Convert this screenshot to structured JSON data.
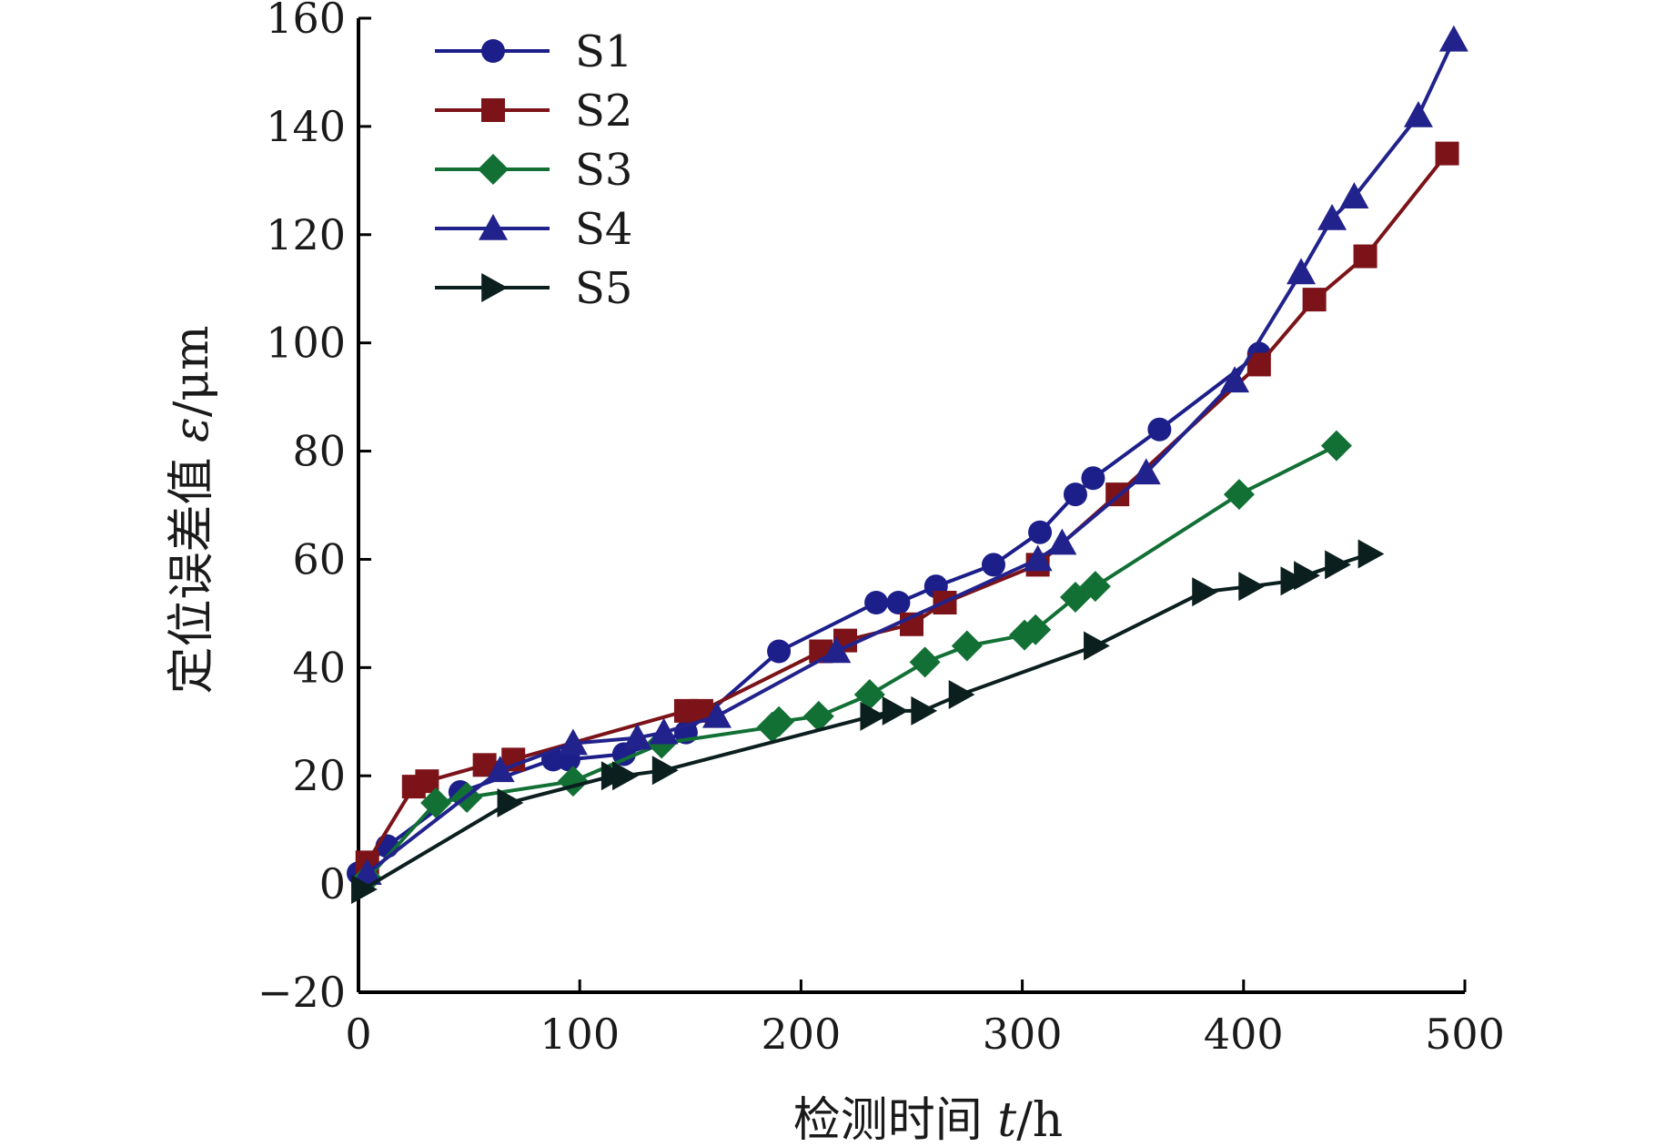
{
  "chart_data": {
    "type": "line",
    "xlabel": {
      "prefix": "检测时间 ",
      "var": "t",
      "suffix": "/h"
    },
    "ylabel": {
      "prefix": "定位误差值 ",
      "var": "ε",
      "suffix": "/μm"
    },
    "xlim": [
      0,
      500
    ],
    "ylim": [
      -20,
      160
    ],
    "xticks": [
      0,
      100,
      200,
      300,
      400,
      500
    ],
    "yticks": [
      -20,
      0,
      20,
      40,
      60,
      80,
      100,
      120,
      140,
      160
    ],
    "grid": false,
    "legend_position": "top-left",
    "series": [
      {
        "name": "S1",
        "color": "#1c1e8a",
        "marker": "circle",
        "points": [
          [
            0,
            2
          ],
          [
            13,
            7
          ],
          [
            46,
            17
          ],
          [
            88,
            23
          ],
          [
            95,
            23
          ],
          [
            120,
            24
          ],
          [
            148,
            28
          ],
          [
            190,
            43
          ],
          [
            234,
            52
          ],
          [
            244,
            52
          ],
          [
            261,
            55
          ],
          [
            287,
            59
          ],
          [
            308,
            65
          ],
          [
            324,
            72
          ],
          [
            332,
            75
          ],
          [
            362,
            84
          ],
          [
            407,
            98
          ]
        ]
      },
      {
        "name": "S2",
        "color": "#7b1318",
        "marker": "square",
        "points": [
          [
            4,
            4
          ],
          [
            25,
            18
          ],
          [
            31,
            19
          ],
          [
            57,
            22
          ],
          [
            70,
            23
          ],
          [
            148,
            32
          ],
          [
            155,
            32
          ],
          [
            209,
            43
          ],
          [
            220,
            45
          ],
          [
            250,
            48
          ],
          [
            265,
            52
          ],
          [
            307,
            59
          ],
          [
            343,
            72
          ],
          [
            407,
            96
          ],
          [
            432,
            108
          ],
          [
            455,
            116
          ],
          [
            492,
            135
          ]
        ]
      },
      {
        "name": "S3",
        "color": "#127035",
        "marker": "diamond",
        "points": [
          [
            4,
            1
          ],
          [
            35,
            15
          ],
          [
            49,
            16
          ],
          [
            97,
            19
          ],
          [
            137,
            26
          ],
          [
            187,
            29
          ],
          [
            190,
            30
          ],
          [
            208,
            31
          ],
          [
            231,
            35
          ],
          [
            256,
            41
          ],
          [
            275,
            44
          ],
          [
            301,
            46
          ],
          [
            306,
            47
          ],
          [
            324,
            53
          ],
          [
            333,
            55
          ],
          [
            398,
            72
          ],
          [
            442,
            81
          ]
        ]
      },
      {
        "name": "S4",
        "color": "#22228c",
        "marker": "triangle-up",
        "points": [
          [
            4,
            2
          ],
          [
            64,
            21
          ],
          [
            97,
            26
          ],
          [
            126,
            27
          ],
          [
            138,
            28
          ],
          [
            162,
            31
          ],
          [
            216,
            43
          ],
          [
            307,
            60
          ],
          [
            318,
            63
          ],
          [
            356,
            76
          ],
          [
            396,
            93
          ],
          [
            426,
            113
          ],
          [
            440,
            123
          ],
          [
            450,
            127
          ],
          [
            479,
            142
          ],
          [
            495,
            156
          ]
        ]
      },
      {
        "name": "S5",
        "color": "#0b1f1e",
        "marker": "triangle-right",
        "points": [
          [
            2,
            -1
          ],
          [
            68,
            15
          ],
          [
            115,
            20
          ],
          [
            120,
            20
          ],
          [
            138,
            21
          ],
          [
            232,
            31
          ],
          [
            242,
            32
          ],
          [
            255,
            32
          ],
          [
            272,
            35
          ],
          [
            333,
            44
          ],
          [
            382,
            54
          ],
          [
            403,
            55
          ],
          [
            422,
            56
          ],
          [
            428,
            57
          ],
          [
            442,
            59
          ],
          [
            457,
            61
          ]
        ]
      }
    ]
  }
}
